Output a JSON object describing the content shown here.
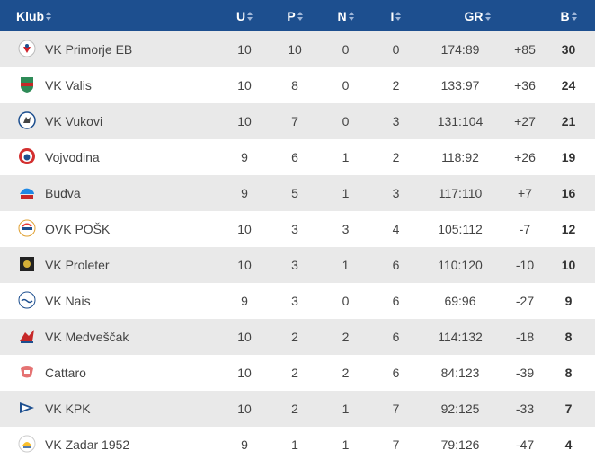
{
  "headers": {
    "club": "Klub",
    "played": "U",
    "won": "P",
    "draw": "N",
    "lost": "I",
    "goals": "GR",
    "points": "B"
  },
  "colors": {
    "header_bg": "#1d4f8f",
    "row_alt_bg": "#e9e9e9"
  },
  "rows": [
    {
      "club": "VK Primorje EB",
      "logo": "primorje-logo",
      "u": "10",
      "p": "10",
      "n": "0",
      "i": "0",
      "goals": "174:89",
      "diff": "+85",
      "b": "30"
    },
    {
      "club": "VK Valis",
      "logo": "valis-logo",
      "u": "10",
      "p": "8",
      "n": "0",
      "i": "2",
      "goals": "133:97",
      "diff": "+36",
      "b": "24"
    },
    {
      "club": "VK Vukovi",
      "logo": "vukovi-logo",
      "u": "10",
      "p": "7",
      "n": "0",
      "i": "3",
      "goals": "131:104",
      "diff": "+27",
      "b": "21"
    },
    {
      "club": "Vojvodina",
      "logo": "vojvodina-logo",
      "u": "9",
      "p": "6",
      "n": "1",
      "i": "2",
      "goals": "118:92",
      "diff": "+26",
      "b": "19"
    },
    {
      "club": "Budva",
      "logo": "budva-logo",
      "u": "9",
      "p": "5",
      "n": "1",
      "i": "3",
      "goals": "117:110",
      "diff": "+7",
      "b": "16"
    },
    {
      "club": "OVK POŠK",
      "logo": "posk-logo",
      "u": "10",
      "p": "3",
      "n": "3",
      "i": "4",
      "goals": "105:112",
      "diff": "-7",
      "b": "12"
    },
    {
      "club": "VK Proleter",
      "logo": "proleter-logo",
      "u": "10",
      "p": "3",
      "n": "1",
      "i": "6",
      "goals": "110:120",
      "diff": "-10",
      "b": "10"
    },
    {
      "club": "VK Nais",
      "logo": "nais-logo",
      "u": "9",
      "p": "3",
      "n": "0",
      "i": "6",
      "goals": "69:96",
      "diff": "-27",
      "b": "9"
    },
    {
      "club": "VK Medveščak",
      "logo": "medvescak-logo",
      "u": "10",
      "p": "2",
      "n": "2",
      "i": "6",
      "goals": "114:132",
      "diff": "-18",
      "b": "8"
    },
    {
      "club": "Cattaro",
      "logo": "cattaro-logo",
      "u": "10",
      "p": "2",
      "n": "2",
      "i": "6",
      "goals": "84:123",
      "diff": "-39",
      "b": "8"
    },
    {
      "club": "VK KPK",
      "logo": "kpk-logo",
      "u": "10",
      "p": "2",
      "n": "1",
      "i": "7",
      "goals": "92:125",
      "diff": "-33",
      "b": "7"
    },
    {
      "club": "VK Zadar 1952",
      "logo": "zadar-logo",
      "u": "9",
      "p": "1",
      "n": "1",
      "i": "7",
      "goals": "79:126",
      "diff": "-47",
      "b": "4"
    }
  ]
}
